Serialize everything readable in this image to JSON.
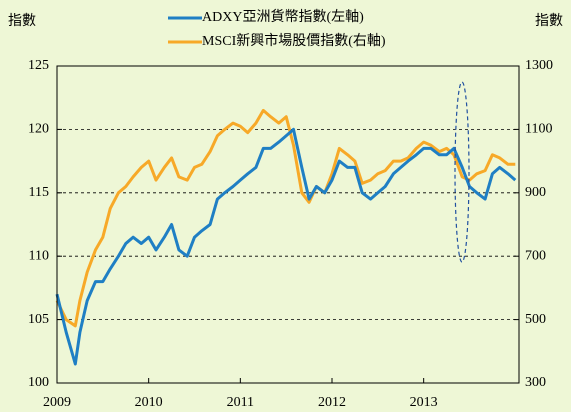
{
  "chart_data": {
    "type": "line",
    "y_label": "指數",
    "y2_label": "指數",
    "x": [
      2009.0,
      2009.1,
      2009.2,
      2009.25,
      2009.33,
      2009.42,
      2009.5,
      2009.58,
      2009.67,
      2009.75,
      2009.83,
      2009.92,
      2010.0,
      2010.08,
      2010.17,
      2010.25,
      2010.33,
      2010.42,
      2010.5,
      2010.58,
      2010.67,
      2010.75,
      2010.83,
      2010.92,
      2011.0,
      2011.08,
      2011.17,
      2011.25,
      2011.33,
      2011.42,
      2011.5,
      2011.58,
      2011.67,
      2011.75,
      2011.83,
      2011.92,
      2012.0,
      2012.08,
      2012.17,
      2012.25,
      2012.33,
      2012.42,
      2012.5,
      2012.58,
      2012.67,
      2012.75,
      2012.83,
      2012.92,
      2013.0,
      2013.08,
      2013.17,
      2013.25,
      2013.33,
      2013.42,
      2013.5,
      2013.58,
      2013.67,
      2013.75,
      2013.83,
      2013.92,
      2014.0
    ],
    "series": [
      {
        "name": "ADXY亞洲貨幣指數(左軸)",
        "color": "#1f7fc4",
        "axis": "y",
        "values": [
          107,
          104,
          101.5,
          104,
          106.5,
          108,
          108,
          109,
          110,
          111,
          111.5,
          111,
          111.5,
          110.5,
          111.5,
          112.5,
          110.5,
          110,
          111.5,
          112,
          112.5,
          114.5,
          115,
          115.5,
          116,
          116.5,
          117,
          118.5,
          118.5,
          119,
          119.5,
          120,
          117,
          114.5,
          115.5,
          115,
          116,
          117.5,
          117,
          117,
          115,
          114.5,
          115,
          115.5,
          116.5,
          117,
          117.5,
          118,
          118.5,
          118.5,
          118,
          118,
          118.5,
          117,
          115.5,
          115,
          114.5,
          116.5,
          117,
          116.5,
          116
        ]
      },
      {
        "name": "MSCI新興市場股價指數(右軸)",
        "color": "#f7a928",
        "axis": "y2",
        "values": [
          560,
          500,
          480,
          560,
          650,
          720,
          760,
          850,
          900,
          920,
          950,
          980,
          1000,
          940,
          980,
          1010,
          950,
          940,
          980,
          990,
          1030,
          1080,
          1100,
          1120,
          1110,
          1090,
          1120,
          1160,
          1140,
          1120,
          1140,
          1050,
          900,
          870,
          920,
          900,
          960,
          1040,
          1020,
          1000,
          930,
          940,
          960,
          970,
          1000,
          1000,
          1010,
          1040,
          1060,
          1050,
          1030,
          1040,
          1020,
          950,
          940,
          960,
          970,
          1020,
          1010,
          990,
          990
        ]
      }
    ],
    "xlim": [
      2009,
      2014.04
    ],
    "xticks": [
      2009,
      2010,
      2011,
      2012,
      2013
    ],
    "ylim": [
      100,
      125
    ],
    "yticks": [
      100,
      105,
      110,
      115,
      120,
      125
    ],
    "y2lim": [
      300,
      1300
    ],
    "y2ticks": [
      300,
      500,
      700,
      900,
      1100,
      1300
    ],
    "grid": true
  }
}
